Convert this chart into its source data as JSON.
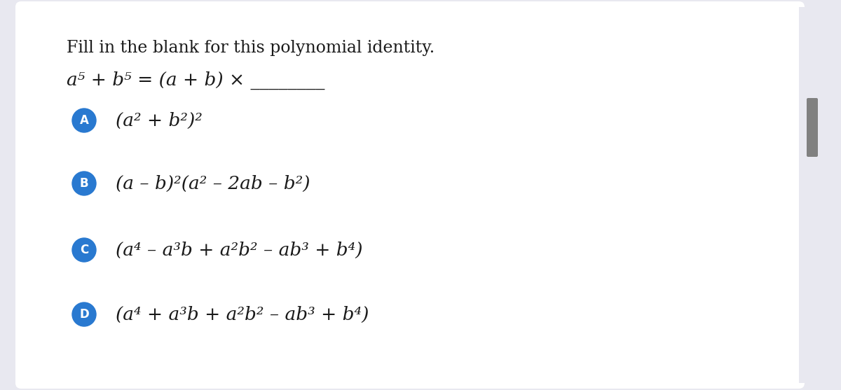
{
  "background_color": "#e8e8f0",
  "card_color": "#ffffff",
  "title": "Fill in the blank for this polynomial identity.",
  "equation_plain": "a⁵ + b⁵ = (a + b) × ________",
  "options": [
    {
      "label": "A",
      "text": "(a² + b²)²"
    },
    {
      "label": "B",
      "text": "(a – b)²(a² – 2ab – b²)"
    },
    {
      "label": "C",
      "text": "(a⁴ – a³b + a²b² – ab³ + b⁴)"
    },
    {
      "label": "D",
      "text": "(a⁴ + a³b + a²b² – ab³ + b⁴)"
    }
  ],
  "circle_color": "#2979d0",
  "text_color": "#1a1a1a",
  "title_fontsize": 17,
  "eq_fontsize": 19,
  "option_fontsize": 19,
  "label_fontsize": 12,
  "scrollbar_color": "#808080",
  "figsize": [
    12.0,
    5.57
  ],
  "dpi": 100
}
